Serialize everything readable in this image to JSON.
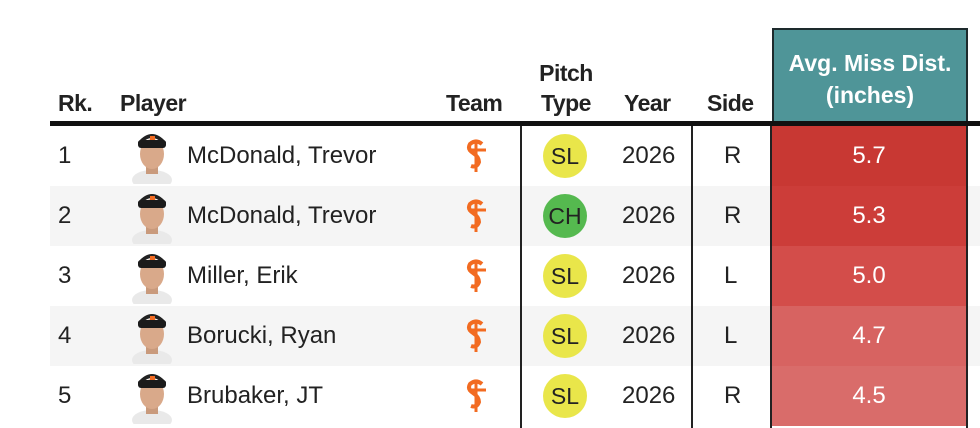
{
  "table": {
    "columns": [
      "Rk.",
      "Player",
      "Team",
      "Pitch Type",
      "Year",
      "Side",
      "Avg. Miss Dist. (inches)"
    ],
    "rows": [
      {
        "rank": 1,
        "player": "McDonald, Trevor",
        "pitch": "SL",
        "pitch_color": "#e9e64a",
        "year": 2026,
        "side": "R",
        "dist": "5.7",
        "dist_color": "#c83833"
      },
      {
        "rank": 2,
        "player": "McDonald, Trevor",
        "pitch": "CH",
        "pitch_color": "#55b94f",
        "year": 2026,
        "side": "R",
        "dist": "5.3",
        "dist_color": "#cc3d39"
      },
      {
        "rank": 3,
        "player": "Miller, Erik",
        "pitch": "SL",
        "pitch_color": "#e9e64a",
        "year": 2026,
        "side": "L",
        "dist": "5.0",
        "dist_color": "#d34d4a"
      },
      {
        "rank": 4,
        "player": "Borucki, Ryan",
        "pitch": "SL",
        "pitch_color": "#e9e64a",
        "year": 2026,
        "side": "L",
        "dist": "4.7",
        "dist_color": "#d76361"
      },
      {
        "rank": 5,
        "player": "Brubaker, JT",
        "pitch": "SL",
        "pitch_color": "#e9e64a",
        "year": 2026,
        "side": "R",
        "dist": "4.5",
        "dist_color": "#d96c6a"
      }
    ]
  }
}
